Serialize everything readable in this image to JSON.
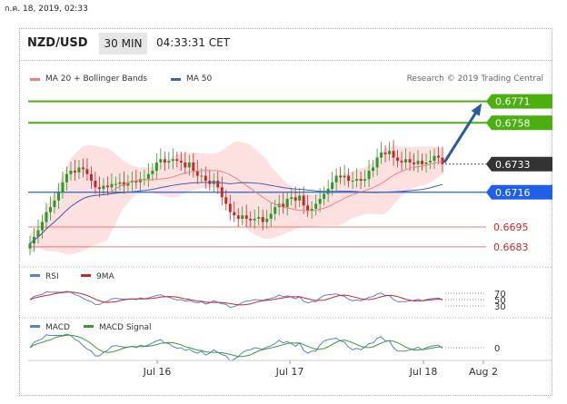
{
  "date_label": "ก.ค. 18, 2019, 02:33",
  "header": {
    "symbol": "NZD/USD",
    "timeframe": "30 MIN",
    "time": "04:33:31 CET"
  },
  "legend": {
    "ma20_bb": "MA 20 + Bollinger Bands",
    "ma50": "MA 50"
  },
  "credit": "Research © 2019 Trading Central",
  "colors": {
    "up": "#2a9a2a",
    "down": "#c62828",
    "support_resistance_green": "#4caf10",
    "current_dark": "#333333",
    "ma50_blue": "#3f64b0",
    "blue_label": "#2060e8",
    "arrow": "#2a5c9a",
    "bollinger_fill": "#fde0e0",
    "red_level": "#ee7777"
  },
  "chart_data": [
    {
      "type": "candlestick",
      "title": "NZD/USD",
      "levels": [
        {
          "value": 0.6771,
          "label": "0.6771",
          "style": "green-box"
        },
        {
          "value": 0.6758,
          "label": "0.6758",
          "style": "green-box"
        },
        {
          "value": 0.6733,
          "label": "0.6733",
          "style": "dark-box"
        },
        {
          "value": 0.6716,
          "label": "0.6716",
          "style": "blue-box"
        },
        {
          "value": 0.6695,
          "label": "0.6695",
          "style": "red-text"
        },
        {
          "value": 0.6683,
          "label": "0.6683",
          "style": "red-text"
        }
      ],
      "ylim": [
        0.6678,
        0.6779
      ],
      "x_ticks": [
        "Jul 16",
        "Jul 17",
        "Jul 18",
        "Aug 2"
      ],
      "closes": [
        0.6685,
        0.6689,
        0.6693,
        0.6698,
        0.6704,
        0.6707,
        0.6711,
        0.6716,
        0.6722,
        0.6727,
        0.6729,
        0.6728,
        0.6731,
        0.673,
        0.6727,
        0.6723,
        0.6719,
        0.6718,
        0.672,
        0.6719,
        0.6721,
        0.6721,
        0.6722,
        0.672,
        0.6722,
        0.6723,
        0.6722,
        0.6724,
        0.6724,
        0.6727,
        0.6729,
        0.6734,
        0.6736,
        0.6734,
        0.6735,
        0.6736,
        0.6735,
        0.6734,
        0.6731,
        0.6734,
        0.6729,
        0.6726,
        0.6726,
        0.6723,
        0.6721,
        0.6723,
        0.6719,
        0.6713,
        0.6709,
        0.6704,
        0.6702,
        0.67,
        0.6702,
        0.67,
        0.6699,
        0.67,
        0.6701,
        0.6698,
        0.67,
        0.6703,
        0.6707,
        0.6709,
        0.6707,
        0.6712,
        0.6713,
        0.6711,
        0.6714,
        0.6708,
        0.6705,
        0.6706,
        0.6709,
        0.6712,
        0.6715,
        0.6718,
        0.6722,
        0.6726,
        0.6725,
        0.6726,
        0.6723,
        0.6723,
        0.6724,
        0.6723,
        0.6724,
        0.6729,
        0.6731,
        0.6737,
        0.674,
        0.6739,
        0.6741,
        0.6737,
        0.6735,
        0.6734,
        0.6736,
        0.6734,
        0.6733,
        0.6735,
        0.6733,
        0.6734,
        0.6735,
        0.6738,
        0.6737,
        0.6733
      ],
      "sub_panels": [
        {
          "name": "RSI",
          "secondary": "9MA",
          "levels": [
            "70",
            "50",
            "30"
          ]
        },
        {
          "name": "MACD",
          "secondary": "MACD Signal",
          "levels": [
            "0"
          ]
        }
      ]
    }
  ]
}
